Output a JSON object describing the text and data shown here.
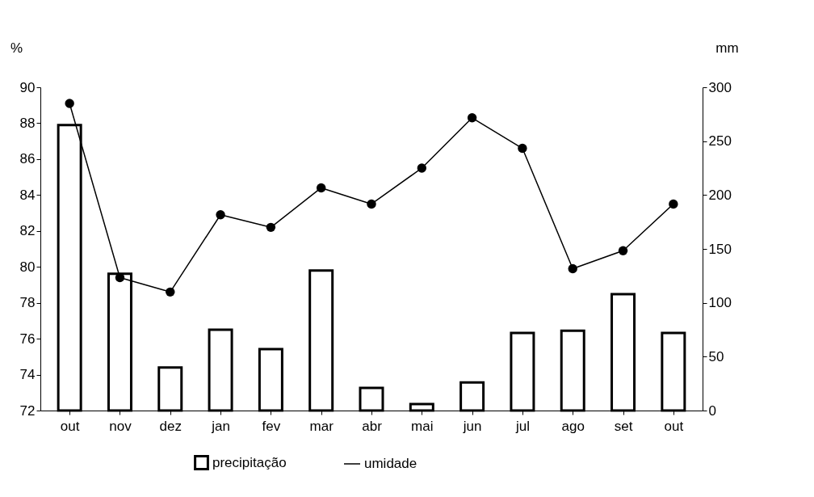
{
  "chart_data": {
    "type": "bar",
    "ylabel": "%",
    "y2label": "mm",
    "categories": [
      "out",
      "nov",
      "dez",
      "jan",
      "fev",
      "mar",
      "abr",
      "mai",
      "jun",
      "jul",
      "ago",
      "set",
      "out"
    ],
    "series": [
      {
        "name": "precipitação",
        "axis": "y2",
        "color": "#ffffff",
        "values": [
          265,
          127,
          40,
          75,
          57,
          130,
          21,
          6,
          26,
          72,
          74,
          108,
          72
        ]
      },
      {
        "name": "umidade",
        "type": "line",
        "color": "#000000",
        "marker": "circle",
        "values": [
          89.1,
          79.4,
          78.6,
          82.9,
          82.2,
          84.4,
          83.5,
          85.5,
          88.3,
          86.6,
          79.9,
          80.9,
          83.5
        ]
      }
    ],
    "ylim": [
      72,
      90
    ],
    "yticks": [
      72,
      74,
      76,
      78,
      80,
      82,
      84,
      86,
      88,
      90
    ],
    "y2lim": [
      0,
      300
    ],
    "y2ticks": [
      0,
      50,
      100,
      150,
      200,
      250,
      300
    ],
    "grid": false,
    "legend": "bottom"
  }
}
